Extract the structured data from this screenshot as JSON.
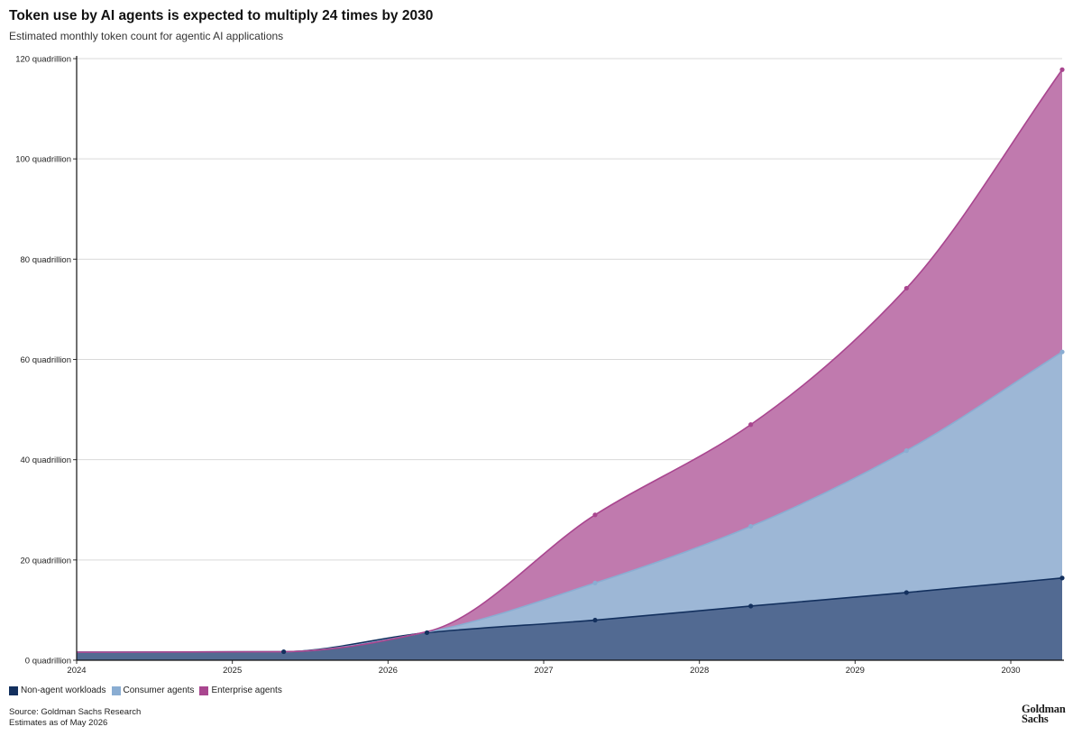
{
  "title": "Token use by AI agents is expected to multiply 24 times by 2030",
  "subtitle": "Estimated monthly token count for agentic AI applications",
  "legend": [
    {
      "label": "Non-agent workloads",
      "color": "#13305e"
    },
    {
      "label": "Consumer agents",
      "color": "#8aadd2"
    },
    {
      "label": "Enterprise agents",
      "color": "#a9468f"
    }
  ],
  "source": "Source: Goldman Sachs Research",
  "note": "Estimates as of May 2026",
  "logo_line1": "Goldman",
  "logo_line2": "Sachs",
  "chart_data": {
    "type": "area",
    "stacked": true,
    "x": [
      2024.0,
      2025.33,
      2026.25,
      2027.33,
      2028.33,
      2029.33,
      2030.33
    ],
    "x_ticks": [
      "2024",
      "2025",
      "2026",
      "2027",
      "2028",
      "2029",
      "2030"
    ],
    "x_tick_values": [
      2024,
      2025,
      2026,
      2027,
      2028,
      2029,
      2030
    ],
    "y_ticks": [
      "0 quadrillion",
      "20 quadrillion",
      "40 quadrillion",
      "60 quadrillion",
      "80 quadrillion",
      "100 quadrillion",
      "120 quadrillion"
    ],
    "y_tick_values": [
      0,
      20,
      40,
      60,
      80,
      100,
      120
    ],
    "xlim": [
      2024,
      2030.33
    ],
    "ylim": [
      0,
      120
    ],
    "grid": true,
    "legend_position": "bottom-left",
    "series": [
      {
        "name": "Non-agent workloads",
        "color": "#13305e",
        "values": [
          1.6,
          1.7,
          5.5,
          8.0,
          10.8,
          13.5,
          16.4
        ]
      },
      {
        "name": "Consumer agents",
        "color": "#8aadd2",
        "values": [
          0.0,
          0.0,
          0.1,
          7.4,
          15.9,
          28.3,
          45.1
        ]
      },
      {
        "name": "Enterprise agents",
        "color": "#a9468f",
        "values": [
          0.0,
          0.0,
          0.1,
          13.6,
          20.3,
          32.4,
          56.3
        ]
      }
    ]
  }
}
